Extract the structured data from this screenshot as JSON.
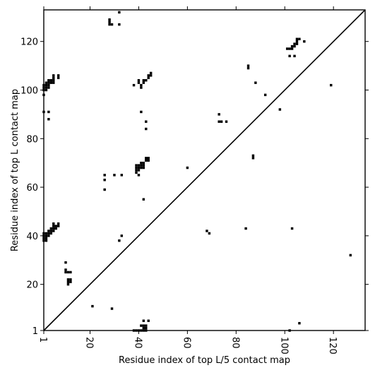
{
  "chart_data": {
    "type": "scatter",
    "title": "",
    "xlabel": "Residue index of top L/5 contact map",
    "ylabel": "Residue index of top L contact map",
    "xlim": [
      1,
      133
    ],
    "ylim": [
      1,
      133
    ],
    "xticks": [
      1,
      20,
      40,
      60,
      80,
      100,
      120
    ],
    "yticks": [
      1,
      20,
      40,
      60,
      80,
      100,
      120
    ],
    "xtick_labels": [
      "1",
      "20",
      "40",
      "60",
      "80",
      "100",
      "120"
    ],
    "ytick_labels": [
      "1",
      "20",
      "40",
      "60",
      "80",
      "100",
      "120"
    ],
    "diagonal": true,
    "marker": "square",
    "color": "#000000",
    "series": [
      {
        "points": [
          [
            28,
            129
          ],
          [
            28,
            128
          ],
          [
            28,
            127
          ],
          [
            29,
            127
          ],
          [
            32,
            132
          ],
          [
            32,
            127
          ],
          [
            1,
            98
          ],
          [
            1,
            100
          ],
          [
            1,
            101
          ],
          [
            1,
            102
          ],
          [
            2,
            100
          ],
          [
            2,
            101
          ],
          [
            2,
            102
          ],
          [
            2,
            103
          ],
          [
            3,
            101
          ],
          [
            3,
            102
          ],
          [
            3,
            103
          ],
          [
            3,
            104
          ],
          [
            4,
            103
          ],
          [
            4,
            104
          ],
          [
            5,
            103
          ],
          [
            5,
            104
          ],
          [
            5,
            105
          ],
          [
            5,
            106
          ],
          [
            7,
            105
          ],
          [
            7,
            106
          ],
          [
            1,
            91
          ],
          [
            3,
            91
          ],
          [
            3,
            88
          ],
          [
            38,
            102
          ],
          [
            40,
            104
          ],
          [
            40,
            103
          ],
          [
            41,
            102
          ],
          [
            41,
            101
          ],
          [
            42,
            103
          ],
          [
            42,
            104
          ],
          [
            43,
            104
          ],
          [
            44,
            105
          ],
          [
            44,
            106
          ],
          [
            45,
            106
          ],
          [
            45,
            107
          ],
          [
            41,
            91
          ],
          [
            43,
            87
          ],
          [
            43,
            84
          ],
          [
            39,
            69
          ],
          [
            39,
            68
          ],
          [
            39,
            67
          ],
          [
            39,
            66
          ],
          [
            40,
            69
          ],
          [
            40,
            68
          ],
          [
            40,
            67
          ],
          [
            40,
            65
          ],
          [
            41,
            70
          ],
          [
            41,
            69
          ],
          [
            41,
            68
          ],
          [
            42,
            70
          ],
          [
            42,
            69
          ],
          [
            42,
            68
          ],
          [
            43,
            72
          ],
          [
            43,
            71
          ],
          [
            44,
            72
          ],
          [
            44,
            71
          ],
          [
            26,
            65
          ],
          [
            26,
            63
          ],
          [
            26,
            59
          ],
          [
            30,
            65
          ],
          [
            33,
            65
          ],
          [
            42,
            55
          ],
          [
            1,
            41
          ],
          [
            1,
            40
          ],
          [
            1,
            39
          ],
          [
            1,
            38
          ],
          [
            2,
            41
          ],
          [
            2,
            40
          ],
          [
            2,
            39
          ],
          [
            2,
            38
          ],
          [
            3,
            42
          ],
          [
            3,
            41
          ],
          [
            3,
            40
          ],
          [
            4,
            43
          ],
          [
            4,
            42
          ],
          [
            4,
            41
          ],
          [
            5,
            45
          ],
          [
            5,
            44
          ],
          [
            5,
            43
          ],
          [
            5,
            42
          ],
          [
            6,
            44
          ],
          [
            6,
            43
          ],
          [
            7,
            45
          ],
          [
            7,
            44
          ],
          [
            10,
            29
          ],
          [
            10,
            26
          ],
          [
            10,
            25
          ],
          [
            11,
            25
          ],
          [
            12,
            25
          ],
          [
            11,
            22
          ],
          [
            11,
            21
          ],
          [
            11,
            20
          ],
          [
            12,
            22
          ],
          [
            12,
            21
          ],
          [
            32,
            38
          ],
          [
            33,
            40
          ],
          [
            21,
            11
          ],
          [
            29,
            10
          ],
          [
            38,
            1
          ],
          [
            39,
            1
          ],
          [
            40,
            1
          ],
          [
            41,
            1
          ],
          [
            41,
            3
          ],
          [
            42,
            3
          ],
          [
            42,
            2
          ],
          [
            42,
            1
          ],
          [
            43,
            3
          ],
          [
            43,
            2
          ],
          [
            43,
            1
          ],
          [
            42,
            5
          ],
          [
            44,
            5
          ],
          [
            60,
            68
          ],
          [
            68,
            42
          ],
          [
            69,
            41
          ],
          [
            73,
            90
          ],
          [
            73,
            87
          ],
          [
            74,
            87
          ],
          [
            76,
            87
          ],
          [
            85,
            110
          ],
          [
            85,
            109
          ],
          [
            84,
            43
          ],
          [
            87,
            73
          ],
          [
            87,
            72
          ],
          [
            88,
            103
          ],
          [
            92,
            98
          ],
          [
            98,
            92
          ],
          [
            101,
            117
          ],
          [
            102,
            117
          ],
          [
            102,
            114
          ],
          [
            103,
            118
          ],
          [
            103,
            117
          ],
          [
            104,
            119
          ],
          [
            104,
            118
          ],
          [
            104,
            114
          ],
          [
            105,
            121
          ],
          [
            105,
            120
          ],
          [
            105,
            119
          ],
          [
            106,
            121
          ],
          [
            108,
            120
          ],
          [
            103,
            43
          ],
          [
            102,
            1
          ],
          [
            106,
            4
          ],
          [
            119,
            102
          ],
          [
            127,
            32
          ]
        ]
      }
    ],
    "legend": "none",
    "grid": false
  }
}
